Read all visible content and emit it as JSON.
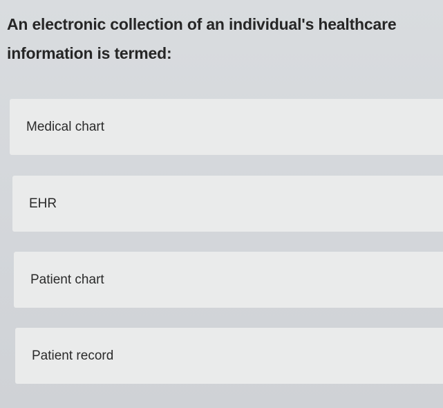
{
  "question": "An electronic collection of an individual's healthcare information is termed:",
  "options": [
    {
      "label": "Medical chart"
    },
    {
      "label": "EHR"
    },
    {
      "label": "Patient chart"
    },
    {
      "label": "Patient record"
    }
  ]
}
